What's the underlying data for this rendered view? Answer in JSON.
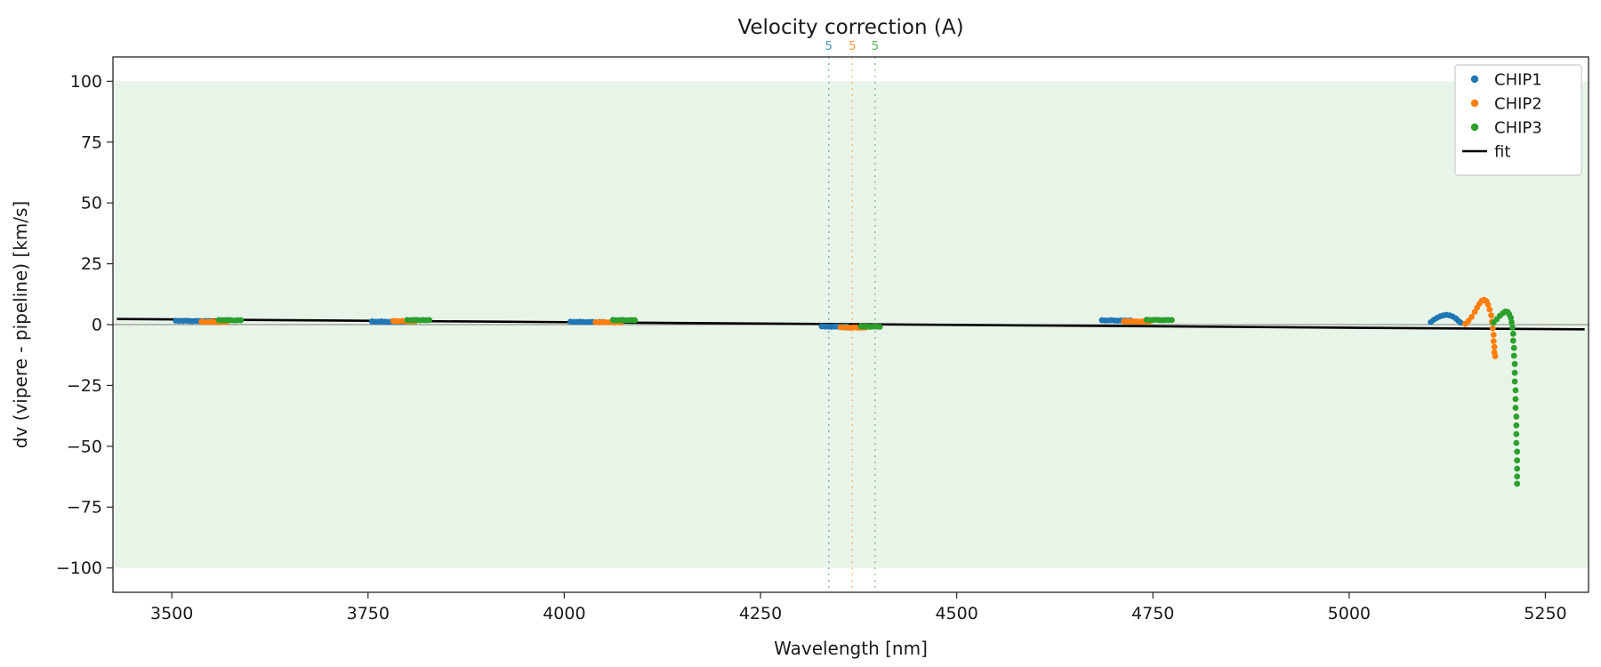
{
  "chart_data": {
    "type": "scatter",
    "title": "Velocity correction (A)",
    "xlabel": "Wavelength [nm]",
    "ylabel": "dv (vipere - pipeline) [km/s]",
    "xlim": [
      3425,
      5305
    ],
    "ylim": [
      -110,
      110
    ],
    "x_ticks": [
      3500,
      3750,
      4000,
      4250,
      4500,
      4750,
      5000,
      5250
    ],
    "x_tick_labels": [
      "3500",
      "3750",
      "4000",
      "4250",
      "4500",
      "4750",
      "5000",
      "5250"
    ],
    "y_ticks": [
      -100,
      -75,
      -50,
      -25,
      0,
      25,
      50,
      75,
      100
    ],
    "y_tick_labels": [
      "−100",
      "−75",
      "−50",
      "−25",
      "0",
      "25",
      "50",
      "75",
      "100"
    ],
    "background_span": {
      "ymin": -100,
      "ymax": 100,
      "color": "#e9f4e9"
    },
    "zero_line": {
      "y": 0,
      "color": "#808080"
    },
    "grid": false,
    "legend_position": "upper right",
    "legend": {
      "entries": [
        {
          "label": "CHIP1",
          "color": "#1f77b4",
          "marker": "dot"
        },
        {
          "label": "CHIP2",
          "color": "#ff7f0e",
          "marker": "dot"
        },
        {
          "label": "CHIP3",
          "color": "#2ca02c",
          "marker": "dot"
        },
        {
          "label": "fit",
          "color": "#000000",
          "marker": "line"
        }
      ]
    },
    "vlines": [
      {
        "x": 4337,
        "label": "5",
        "color": "#1f77b4"
      },
      {
        "x": 4367,
        "label": "5",
        "color": "#ff7f0e"
      },
      {
        "x": 4396,
        "label": "5",
        "color": "#2ca02c"
      }
    ],
    "fit": {
      "name": "fit",
      "color": "#000000",
      "points": [
        [
          3430,
          2.3
        ],
        [
          5300,
          -1.95
        ]
      ]
    },
    "series": [
      {
        "name": "CHIP1",
        "color": "#1f77b4",
        "points": [
          [
            3505,
            1.6
          ],
          [
            3509,
            1.5
          ],
          [
            3514,
            1.5
          ],
          [
            3518,
            1.6
          ],
          [
            3522,
            1.5
          ],
          [
            3526,
            1.4
          ],
          [
            3531,
            1.5
          ],
          [
            3535,
            1.5
          ],
          [
            3539,
            1.4
          ],
          [
            3543,
            1.5
          ],
          [
            3548,
            1.5
          ],
          [
            3755,
            1.3
          ],
          [
            3759,
            1.2
          ],
          [
            3763,
            1.2
          ],
          [
            3767,
            1.3
          ],
          [
            3771,
            1.2
          ],
          [
            3775,
            1.1
          ],
          [
            3779,
            1.2
          ],
          [
            3783,
            1.2
          ],
          [
            3787,
            1.1
          ],
          [
            3791,
            1.2
          ],
          [
            3795,
            1.2
          ],
          [
            4008,
            1.2
          ],
          [
            4012,
            1.1
          ],
          [
            4016,
            1.1
          ],
          [
            4020,
            1.2
          ],
          [
            4024,
            1.1
          ],
          [
            4028,
            1.0
          ],
          [
            4032,
            1.1
          ],
          [
            4036,
            1.1
          ],
          [
            4040,
            1.0
          ],
          [
            4045,
            1.1
          ],
          [
            4049,
            1.1
          ],
          [
            4328,
            -0.7
          ],
          [
            4332,
            -0.8
          ],
          [
            4336,
            -0.8
          ],
          [
            4340,
            -0.9
          ],
          [
            4344,
            -0.8
          ],
          [
            4348,
            -0.8
          ],
          [
            4352,
            -0.9
          ],
          [
            4356,
            -0.8
          ],
          [
            4360,
            -0.8
          ],
          [
            4685,
            1.8
          ],
          [
            4689,
            1.7
          ],
          [
            4693,
            1.7
          ],
          [
            4697,
            1.8
          ],
          [
            4701,
            1.7
          ],
          [
            4705,
            1.6
          ],
          [
            4709,
            1.7
          ],
          [
            4713,
            1.7
          ],
          [
            4717,
            1.6
          ],
          [
            4721,
            1.7
          ],
          [
            5104,
            1.0
          ],
          [
            5108,
            2.0
          ],
          [
            5112,
            2.8
          ],
          [
            5116,
            3.4
          ],
          [
            5120,
            3.8
          ],
          [
            5124,
            4.0
          ],
          [
            5128,
            3.8
          ],
          [
            5132,
            3.3
          ],
          [
            5136,
            2.5
          ],
          [
            5139,
            1.6
          ],
          [
            5142,
            0.8
          ]
        ]
      },
      {
        "name": "CHIP2",
        "color": "#ff7f0e",
        "points": [
          [
            3538,
            1.2
          ],
          [
            3542,
            1.1
          ],
          [
            3546,
            1.1
          ],
          [
            3550,
            1.2
          ],
          [
            3554,
            1.1
          ],
          [
            3558,
            1.0
          ],
          [
            3562,
            1.1
          ],
          [
            3566,
            1.1
          ],
          [
            3570,
            1.1
          ],
          [
            3782,
            1.5
          ],
          [
            3786,
            1.4
          ],
          [
            3790,
            1.4
          ],
          [
            3794,
            1.5
          ],
          [
            3798,
            1.4
          ],
          [
            3802,
            1.3
          ],
          [
            3806,
            1.4
          ],
          [
            3810,
            1.4
          ],
          [
            4040,
            1.0
          ],
          [
            4044,
            0.9
          ],
          [
            4048,
            1.0
          ],
          [
            4052,
            1.0
          ],
          [
            4056,
            0.9
          ],
          [
            4060,
            1.0
          ],
          [
            4064,
            0.9
          ],
          [
            4068,
            1.0
          ],
          [
            4072,
            0.9
          ],
          [
            4352,
            -1.1
          ],
          [
            4356,
            -1.2
          ],
          [
            4360,
            -1.2
          ],
          [
            4364,
            -1.3
          ],
          [
            4368,
            -1.2
          ],
          [
            4372,
            -1.2
          ],
          [
            4376,
            -1.3
          ],
          [
            4380,
            -1.2
          ],
          [
            4384,
            -1.2
          ],
          [
            4713,
            1.4
          ],
          [
            4717,
            1.3
          ],
          [
            4721,
            1.3
          ],
          [
            4725,
            1.4
          ],
          [
            4729,
            1.3
          ],
          [
            4733,
            1.2
          ],
          [
            4737,
            1.3
          ],
          [
            4741,
            1.3
          ],
          [
            4745,
            1.2
          ],
          [
            5148,
            0.3
          ],
          [
            5152,
            1.5
          ],
          [
            5156,
            3.2
          ],
          [
            5160,
            5.2
          ],
          [
            5163,
            7.0
          ],
          [
            5166,
            8.6
          ],
          [
            5169,
            9.8
          ],
          [
            5172,
            10.2
          ],
          [
            5175,
            9.6
          ],
          [
            5177,
            8.2
          ],
          [
            5179,
            6.2
          ],
          [
            5181,
            3.8
          ],
          [
            5182,
            1.2
          ],
          [
            5183,
            -1.5
          ],
          [
            5184,
            -4.2
          ],
          [
            5184,
            -6.8
          ],
          [
            5185,
            -9.2
          ],
          [
            5185,
            -11.4
          ],
          [
            5186,
            -13.0
          ]
        ]
      },
      {
        "name": "CHIP3",
        "color": "#2ca02c",
        "points": [
          [
            3560,
            1.9
          ],
          [
            3564,
            1.8
          ],
          [
            3568,
            1.8
          ],
          [
            3572,
            1.9
          ],
          [
            3576,
            1.8
          ],
          [
            3580,
            1.7
          ],
          [
            3584,
            1.8
          ],
          [
            3588,
            1.8
          ],
          [
            3800,
            1.9
          ],
          [
            3804,
            1.8
          ],
          [
            3808,
            1.9
          ],
          [
            3812,
            1.9
          ],
          [
            3816,
            1.8
          ],
          [
            3820,
            1.9
          ],
          [
            3824,
            1.8
          ],
          [
            3828,
            1.9
          ],
          [
            4062,
            1.9
          ],
          [
            4066,
            1.8
          ],
          [
            4070,
            1.8
          ],
          [
            4074,
            1.9
          ],
          [
            4078,
            1.8
          ],
          [
            4082,
            1.8
          ],
          [
            4086,
            1.9
          ],
          [
            4090,
            1.8
          ],
          [
            4378,
            -0.7
          ],
          [
            4382,
            -0.8
          ],
          [
            4386,
            -0.8
          ],
          [
            4390,
            -0.9
          ],
          [
            4394,
            -0.8
          ],
          [
            4398,
            -0.8
          ],
          [
            4402,
            -0.9
          ],
          [
            4742,
            2.0
          ],
          [
            4746,
            1.9
          ],
          [
            4750,
            1.9
          ],
          [
            4754,
            2.0
          ],
          [
            4758,
            1.9
          ],
          [
            4762,
            1.8
          ],
          [
            4766,
            1.9
          ],
          [
            4770,
            1.9
          ],
          [
            4774,
            1.9
          ],
          [
            5184,
            0.8
          ],
          [
            5188,
            2.2
          ],
          [
            5192,
            3.6
          ],
          [
            5196,
            4.7
          ],
          [
            5199,
            5.4
          ],
          [
            5202,
            5.2
          ],
          [
            5204,
            4.2
          ],
          [
            5206,
            2.8
          ],
          [
            5207,
            1.0
          ],
          [
            5208,
            -1.2
          ],
          [
            5209,
            -3.8
          ],
          [
            5209,
            -6.6
          ],
          [
            5210,
            -9.6
          ],
          [
            5210,
            -12.8
          ],
          [
            5211,
            -16.2
          ],
          [
            5211,
            -19.8
          ],
          [
            5211,
            -23.4
          ],
          [
            5212,
            -27.0
          ],
          [
            5212,
            -30.6
          ],
          [
            5212,
            -34.2
          ],
          [
            5213,
            -37.8
          ],
          [
            5213,
            -41.4
          ],
          [
            5213,
            -45.0
          ],
          [
            5213,
            -48.6
          ],
          [
            5214,
            -52.2
          ],
          [
            5214,
            -55.8
          ],
          [
            5214,
            -59.2
          ],
          [
            5214,
            -62.4
          ],
          [
            5214,
            -65.4
          ]
        ]
      }
    ]
  }
}
